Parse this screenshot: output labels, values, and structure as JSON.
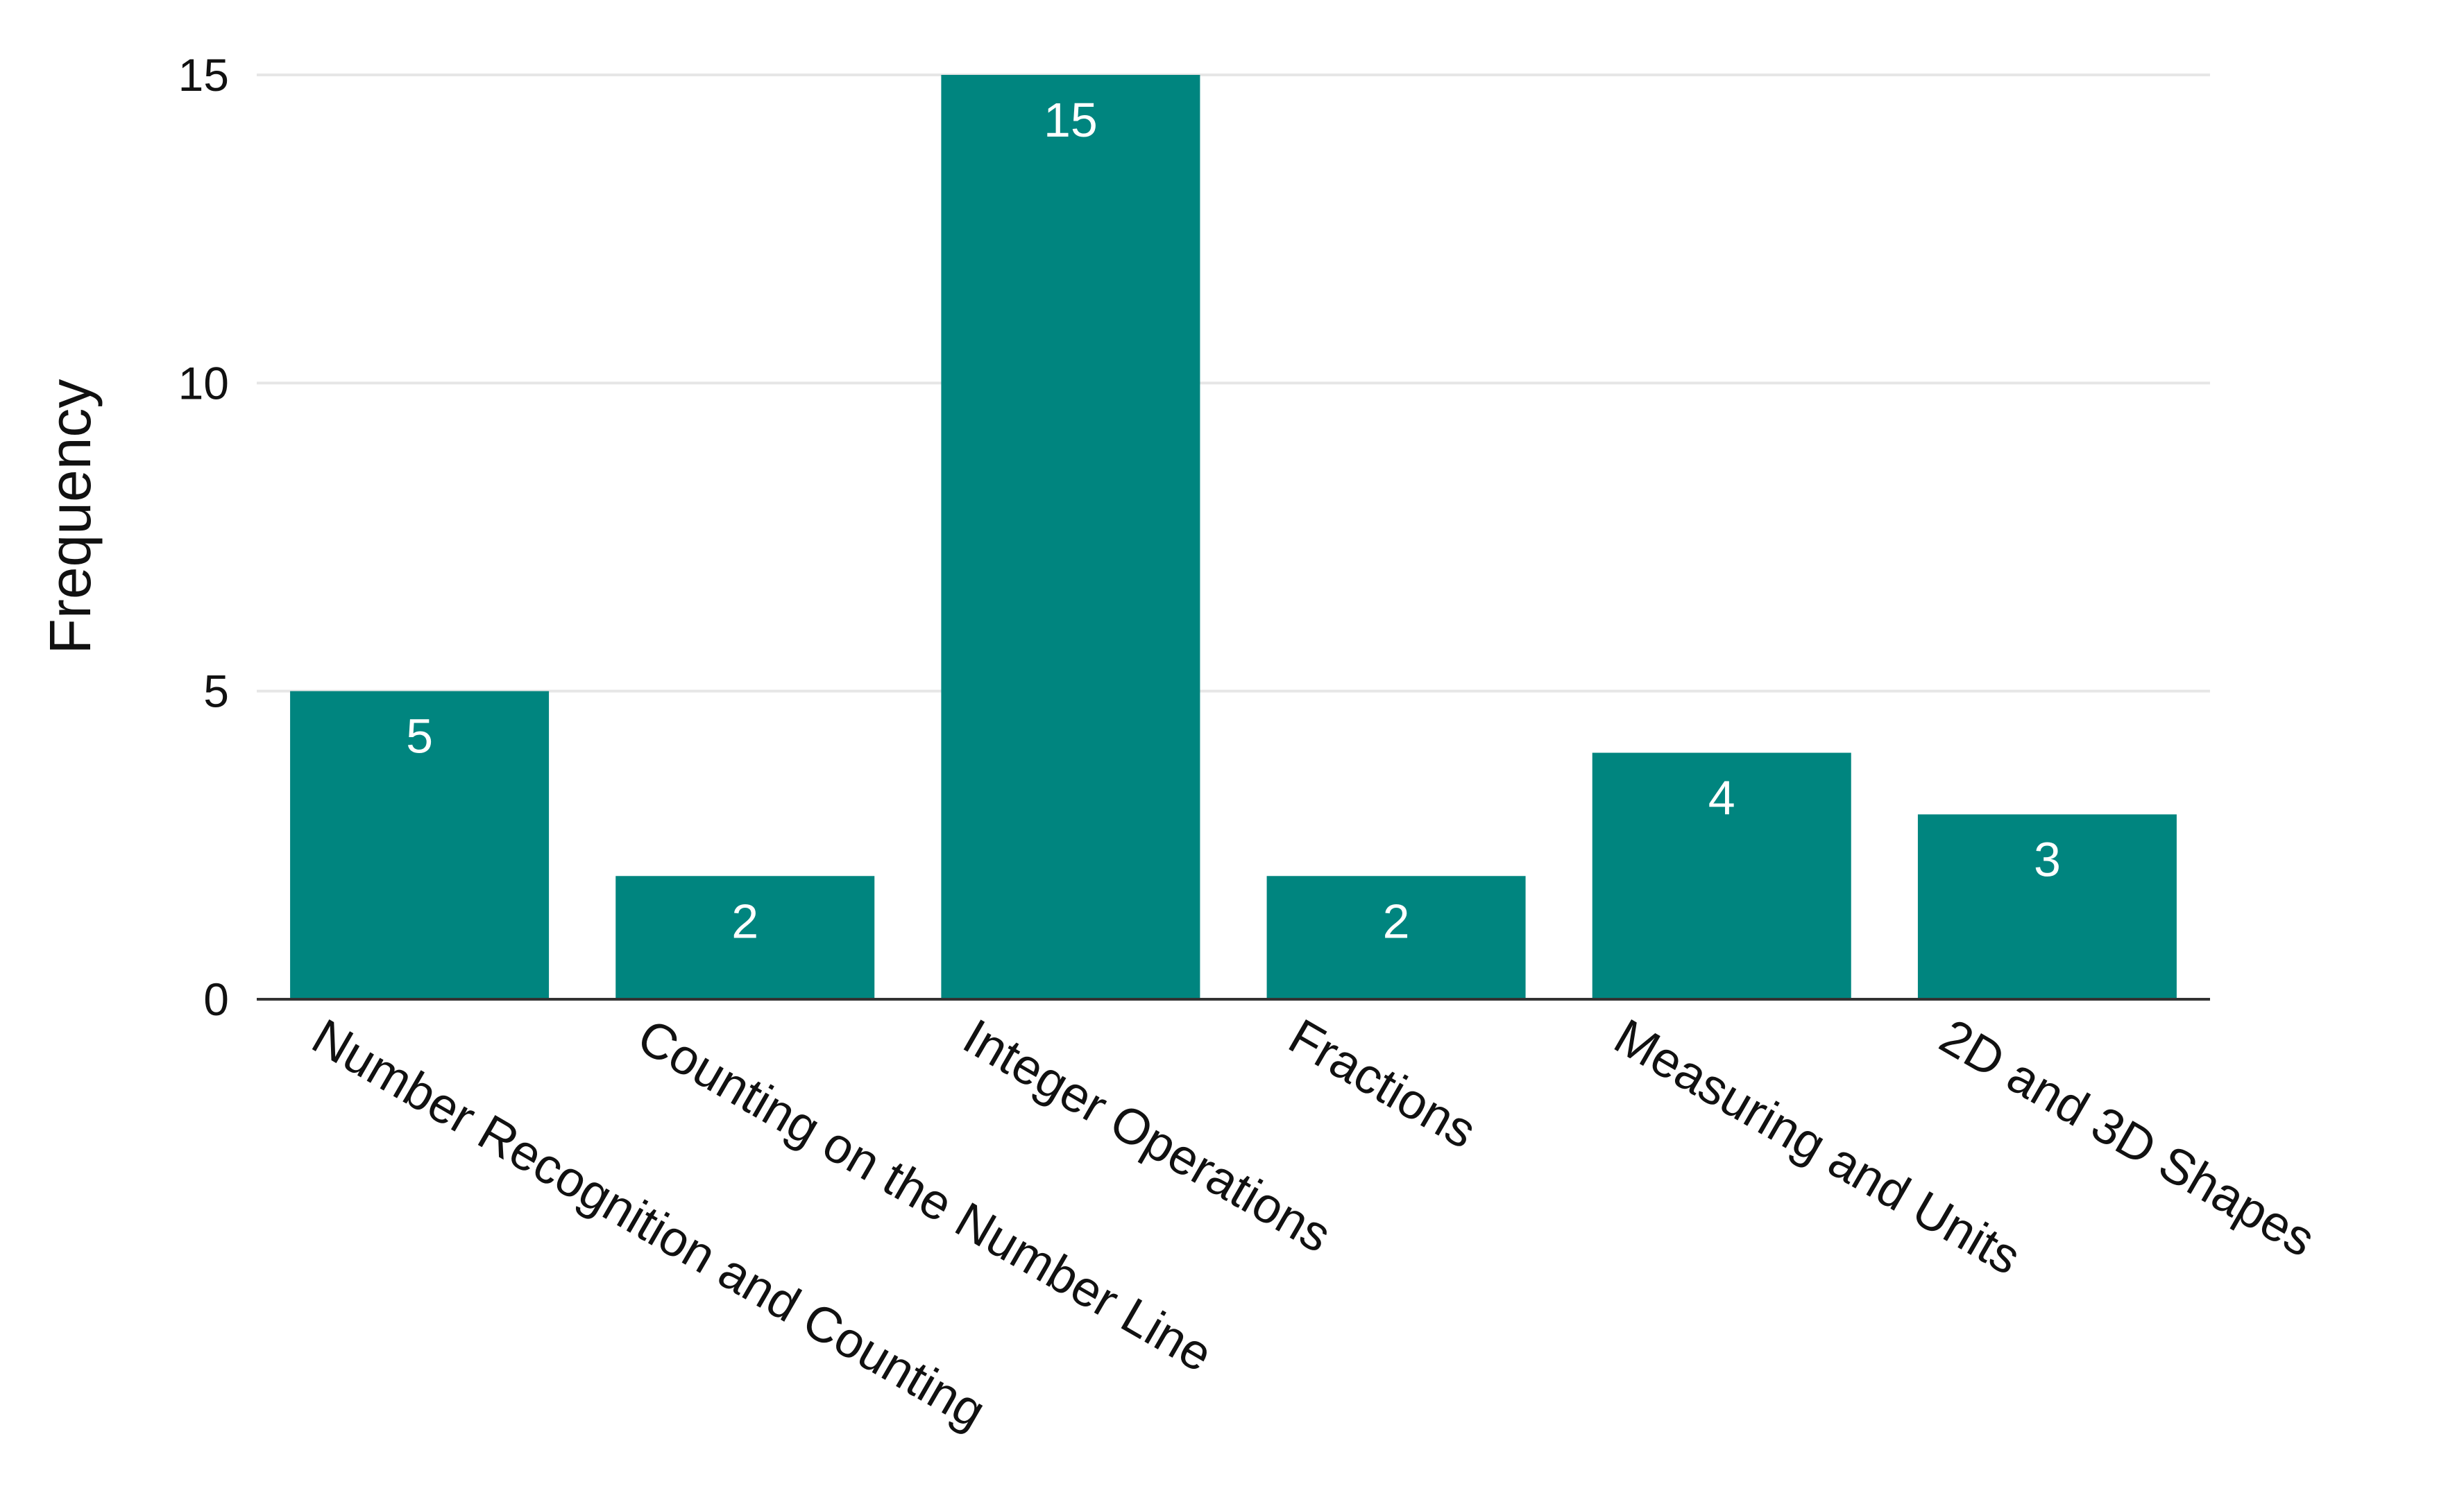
{
  "chart_data": {
    "type": "bar",
    "categories": [
      "Number Recognition and Counting",
      "Counting on the Number Line",
      "Integer Operations",
      "Fractions",
      "Measuring and Units",
      "2D and 3D Shapes"
    ],
    "values": [
      5,
      2,
      15,
      2,
      4,
      3
    ],
    "data_labels": [
      "5",
      "2",
      "15",
      "2",
      "4",
      "3"
    ],
    "title": "",
    "xlabel": "",
    "ylabel": "Frequency",
    "ylim": [
      0,
      15
    ],
    "yticks": [
      0,
      5,
      10,
      15
    ],
    "ytick_labels": [
      "0",
      "5",
      "10",
      "15"
    ],
    "grid": true,
    "legend": "none",
    "bar_color": "#00857f",
    "label_color": "#ffffff"
  }
}
